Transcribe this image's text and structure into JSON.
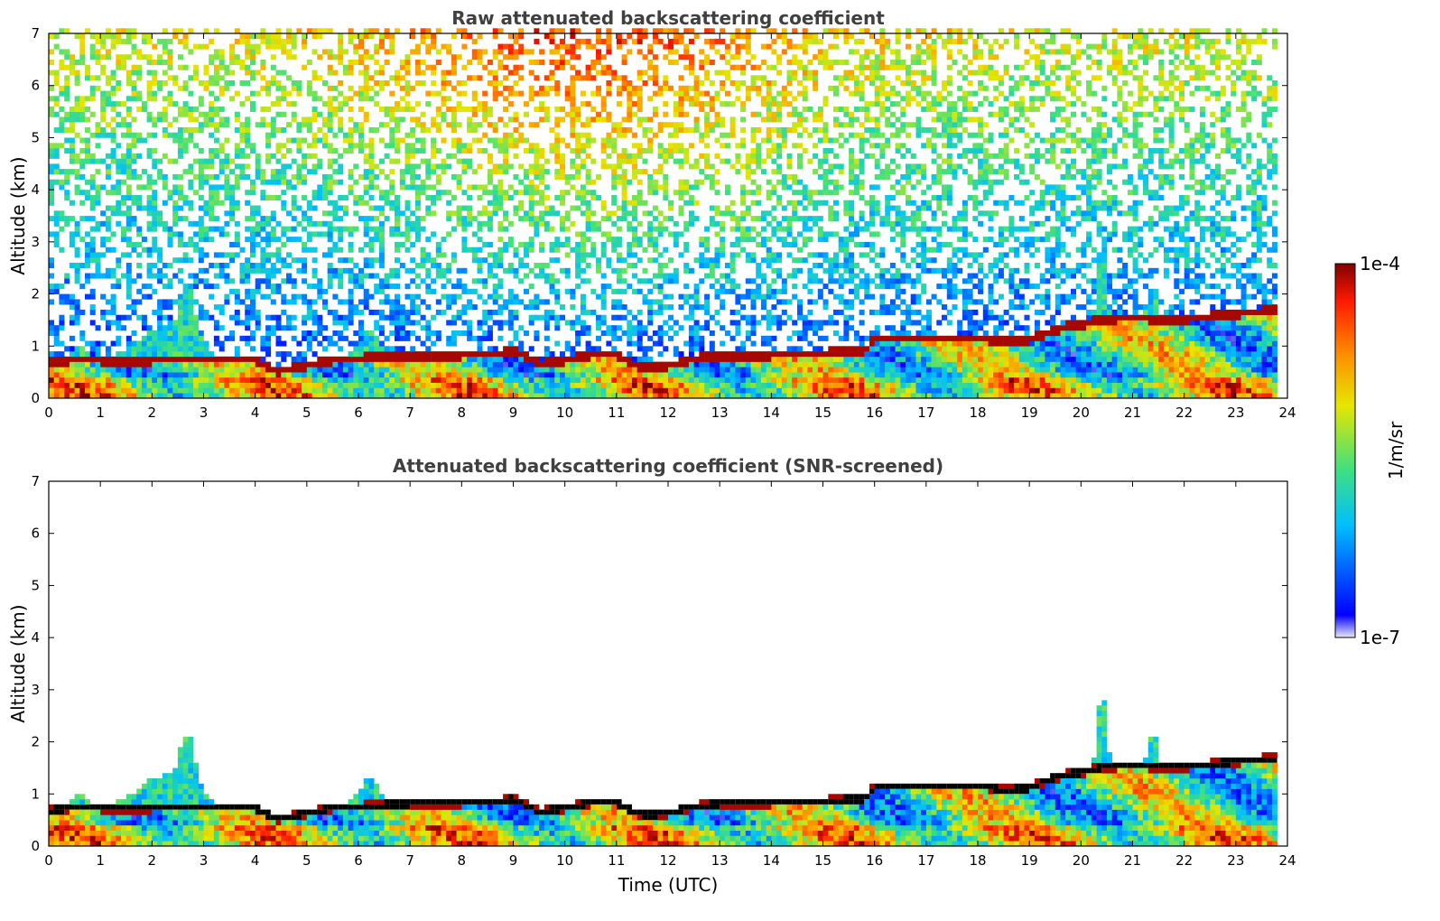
{
  "chart_data": [
    {
      "type": "heatmap",
      "title": "Raw attenuated backscattering coefficient",
      "xlabel": "",
      "ylabel": "Altitude (km)",
      "xlim": [
        0,
        24
      ],
      "ylim": [
        0,
        7
      ],
      "x_ticks": [
        "0",
        "1",
        "2",
        "3",
        "4",
        "5",
        "6",
        "7",
        "8",
        "9",
        "10",
        "11",
        "12",
        "13",
        "14",
        "15",
        "16",
        "17",
        "18",
        "19",
        "20",
        "21",
        "22",
        "23",
        "24"
      ],
      "y_ticks": [
        "0",
        "1",
        "2",
        "3",
        "4",
        "5",
        "6",
        "7"
      ],
      "data_end_time": 23.8,
      "boundary_layer_top": [
        {
          "t": 0,
          "z": 0.65
        },
        {
          "t": 0.5,
          "z": 0.75
        },
        {
          "t": 1,
          "z": 0.72
        },
        {
          "t": 1.5,
          "z": 0.7
        },
        {
          "t": 2,
          "z": 0.72
        },
        {
          "t": 2.5,
          "z": 0.75
        },
        {
          "t": 3,
          "z": 0.75
        },
        {
          "t": 3.5,
          "z": 0.75
        },
        {
          "t": 4,
          "z": 0.72
        },
        {
          "t": 4.4,
          "z": 0.5
        },
        {
          "t": 5,
          "z": 0.62
        },
        {
          "t": 5.5,
          "z": 0.72
        },
        {
          "t": 6,
          "z": 0.75
        },
        {
          "t": 6.5,
          "z": 0.78
        },
        {
          "t": 7,
          "z": 0.8
        },
        {
          "t": 8,
          "z": 0.82
        },
        {
          "t": 8.8,
          "z": 0.85
        },
        {
          "t": 9,
          "z": 0.9
        },
        {
          "t": 9.5,
          "z": 0.65
        },
        {
          "t": 10,
          "z": 0.72
        },
        {
          "t": 10.5,
          "z": 0.82
        },
        {
          "t": 11,
          "z": 0.82
        },
        {
          "t": 11.5,
          "z": 0.58
        },
        {
          "t": 12,
          "z": 0.62
        },
        {
          "t": 12.5,
          "z": 0.75
        },
        {
          "t": 13,
          "z": 0.8
        },
        {
          "t": 14,
          "z": 0.82
        },
        {
          "t": 15,
          "z": 0.85
        },
        {
          "t": 15.8,
          "z": 0.9
        },
        {
          "t": 16,
          "z": 1.12
        },
        {
          "t": 17,
          "z": 1.12
        },
        {
          "t": 18,
          "z": 1.15
        },
        {
          "t": 18.5,
          "z": 1.05
        },
        {
          "t": 19,
          "z": 1.1
        },
        {
          "t": 19.5,
          "z": 1.3
        },
        {
          "t": 20,
          "z": 1.4
        },
        {
          "t": 20.5,
          "z": 1.5
        },
        {
          "t": 21,
          "z": 1.52
        },
        {
          "t": 21.5,
          "z": 1.5
        },
        {
          "t": 22,
          "z": 1.5
        },
        {
          "t": 22.5,
          "z": 1.55
        },
        {
          "t": 23,
          "z": 1.6
        },
        {
          "t": 23.5,
          "z": 1.65
        }
      ]
    },
    {
      "type": "heatmap",
      "title": "Attenuated backscattering coefficient (SNR-screened)",
      "xlabel": "Time (UTC)",
      "ylabel": "Altitude (km)",
      "xlim": [
        0,
        24
      ],
      "ylim": [
        0,
        7
      ],
      "x_ticks": [
        "0",
        "1",
        "2",
        "3",
        "4",
        "5",
        "6",
        "7",
        "8",
        "9",
        "10",
        "11",
        "12",
        "13",
        "14",
        "15",
        "16",
        "17",
        "18",
        "19",
        "20",
        "21",
        "22",
        "23",
        "24"
      ],
      "y_ticks": [
        "0",
        "1",
        "2",
        "3",
        "4",
        "5",
        "6",
        "7"
      ],
      "data_end_time": 23.8
    }
  ],
  "colorbar": {
    "label": "1/m/sr",
    "max_label": "1e-4",
    "min_label": "1e-7",
    "colormap": [
      "#e8e8f8",
      "#0000ff",
      "#00bfff",
      "#3fe07f",
      "#e6e600",
      "#ff8c00",
      "#ff1a00",
      "#7f0000"
    ]
  }
}
